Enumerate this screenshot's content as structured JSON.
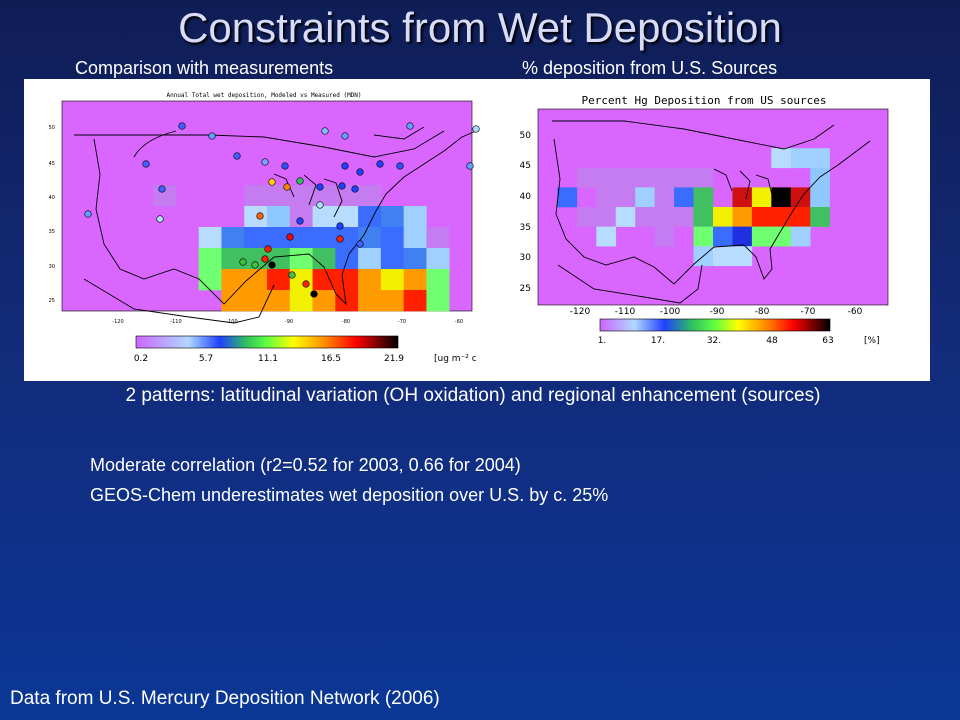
{
  "slide": {
    "title": "Constraints from Wet Deposition",
    "left_heading": "Comparison with measurements",
    "right_heading": "% deposition from U.S. Sources",
    "patterns_text": "2 patterns: latitudinal variation (OH oxidation) and regional enhancement (sources)",
    "bullet_1": "Moderate correlation (r2=0.52 for 2003, 0.66 for 2004)",
    "bullet_2": "GEOS-Chem underestimates wet deposition over U.S. by c. 25%",
    "footer": "Data from U.S. Mercury Deposition Network (2006)"
  },
  "left_map": {
    "title": "Annual Total wet deposition, Modeled vs Measured (MDN)",
    "lat_ticks": [
      "50",
      "45",
      "40",
      "35",
      "30",
      "25"
    ],
    "lon_ticks": [
      "-120",
      "-110",
      "-100",
      "-90",
      "-80",
      "-70",
      "-60"
    ],
    "colorbar_labels": [
      "0.2",
      "5.7",
      "11.1",
      "16.5",
      "21.9"
    ],
    "units": "[ug m⁻² c"
  },
  "right_map": {
    "title": "Percent Hg Deposition from US sources",
    "lat_ticks": [
      "50",
      "45",
      "40",
      "35",
      "30",
      "25"
    ],
    "lon_ticks": [
      "-120",
      "-110",
      "-100",
      "-90",
      "-80",
      "-70",
      "-60"
    ],
    "colorbar_labels": [
      "1.",
      "17.",
      "32.",
      "48",
      "63"
    ],
    "units": "[%]"
  }
}
